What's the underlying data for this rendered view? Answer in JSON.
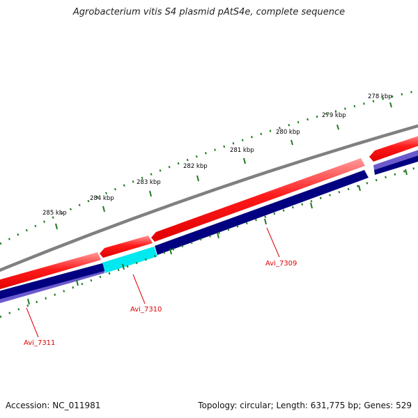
{
  "title": "Agrobacterium vitis S4 plasmid pAtS4e, complete sequence",
  "footer": {
    "accession": "Accession: NC_011981",
    "topology": "Topology: circular; Length: 631,775 bp; Genes: 529"
  },
  "ruler": {
    "labels": [
      "278 kbp",
      "279 kbp",
      "280 kbp",
      "281 kbp",
      "282 kbp",
      "283 kbp",
      "284 kbp",
      "285 kbp"
    ]
  },
  "genes": [
    {
      "name": "Avi_7309",
      "label": "Avi_7309"
    },
    {
      "name": "Avi_7310",
      "label": "Avi_7310"
    },
    {
      "name": "Avi_7311",
      "label": "Avi_7311"
    }
  ],
  "colors": {
    "backbone": "#808080",
    "forward_cds": "#ff0000",
    "reverse_cds": "#000080",
    "highlight_cds": "#00ffff",
    "reverse_shadow": "#7b68ee",
    "ruler_tick": "#1f7a1f",
    "gene_label": "#dd0000"
  }
}
